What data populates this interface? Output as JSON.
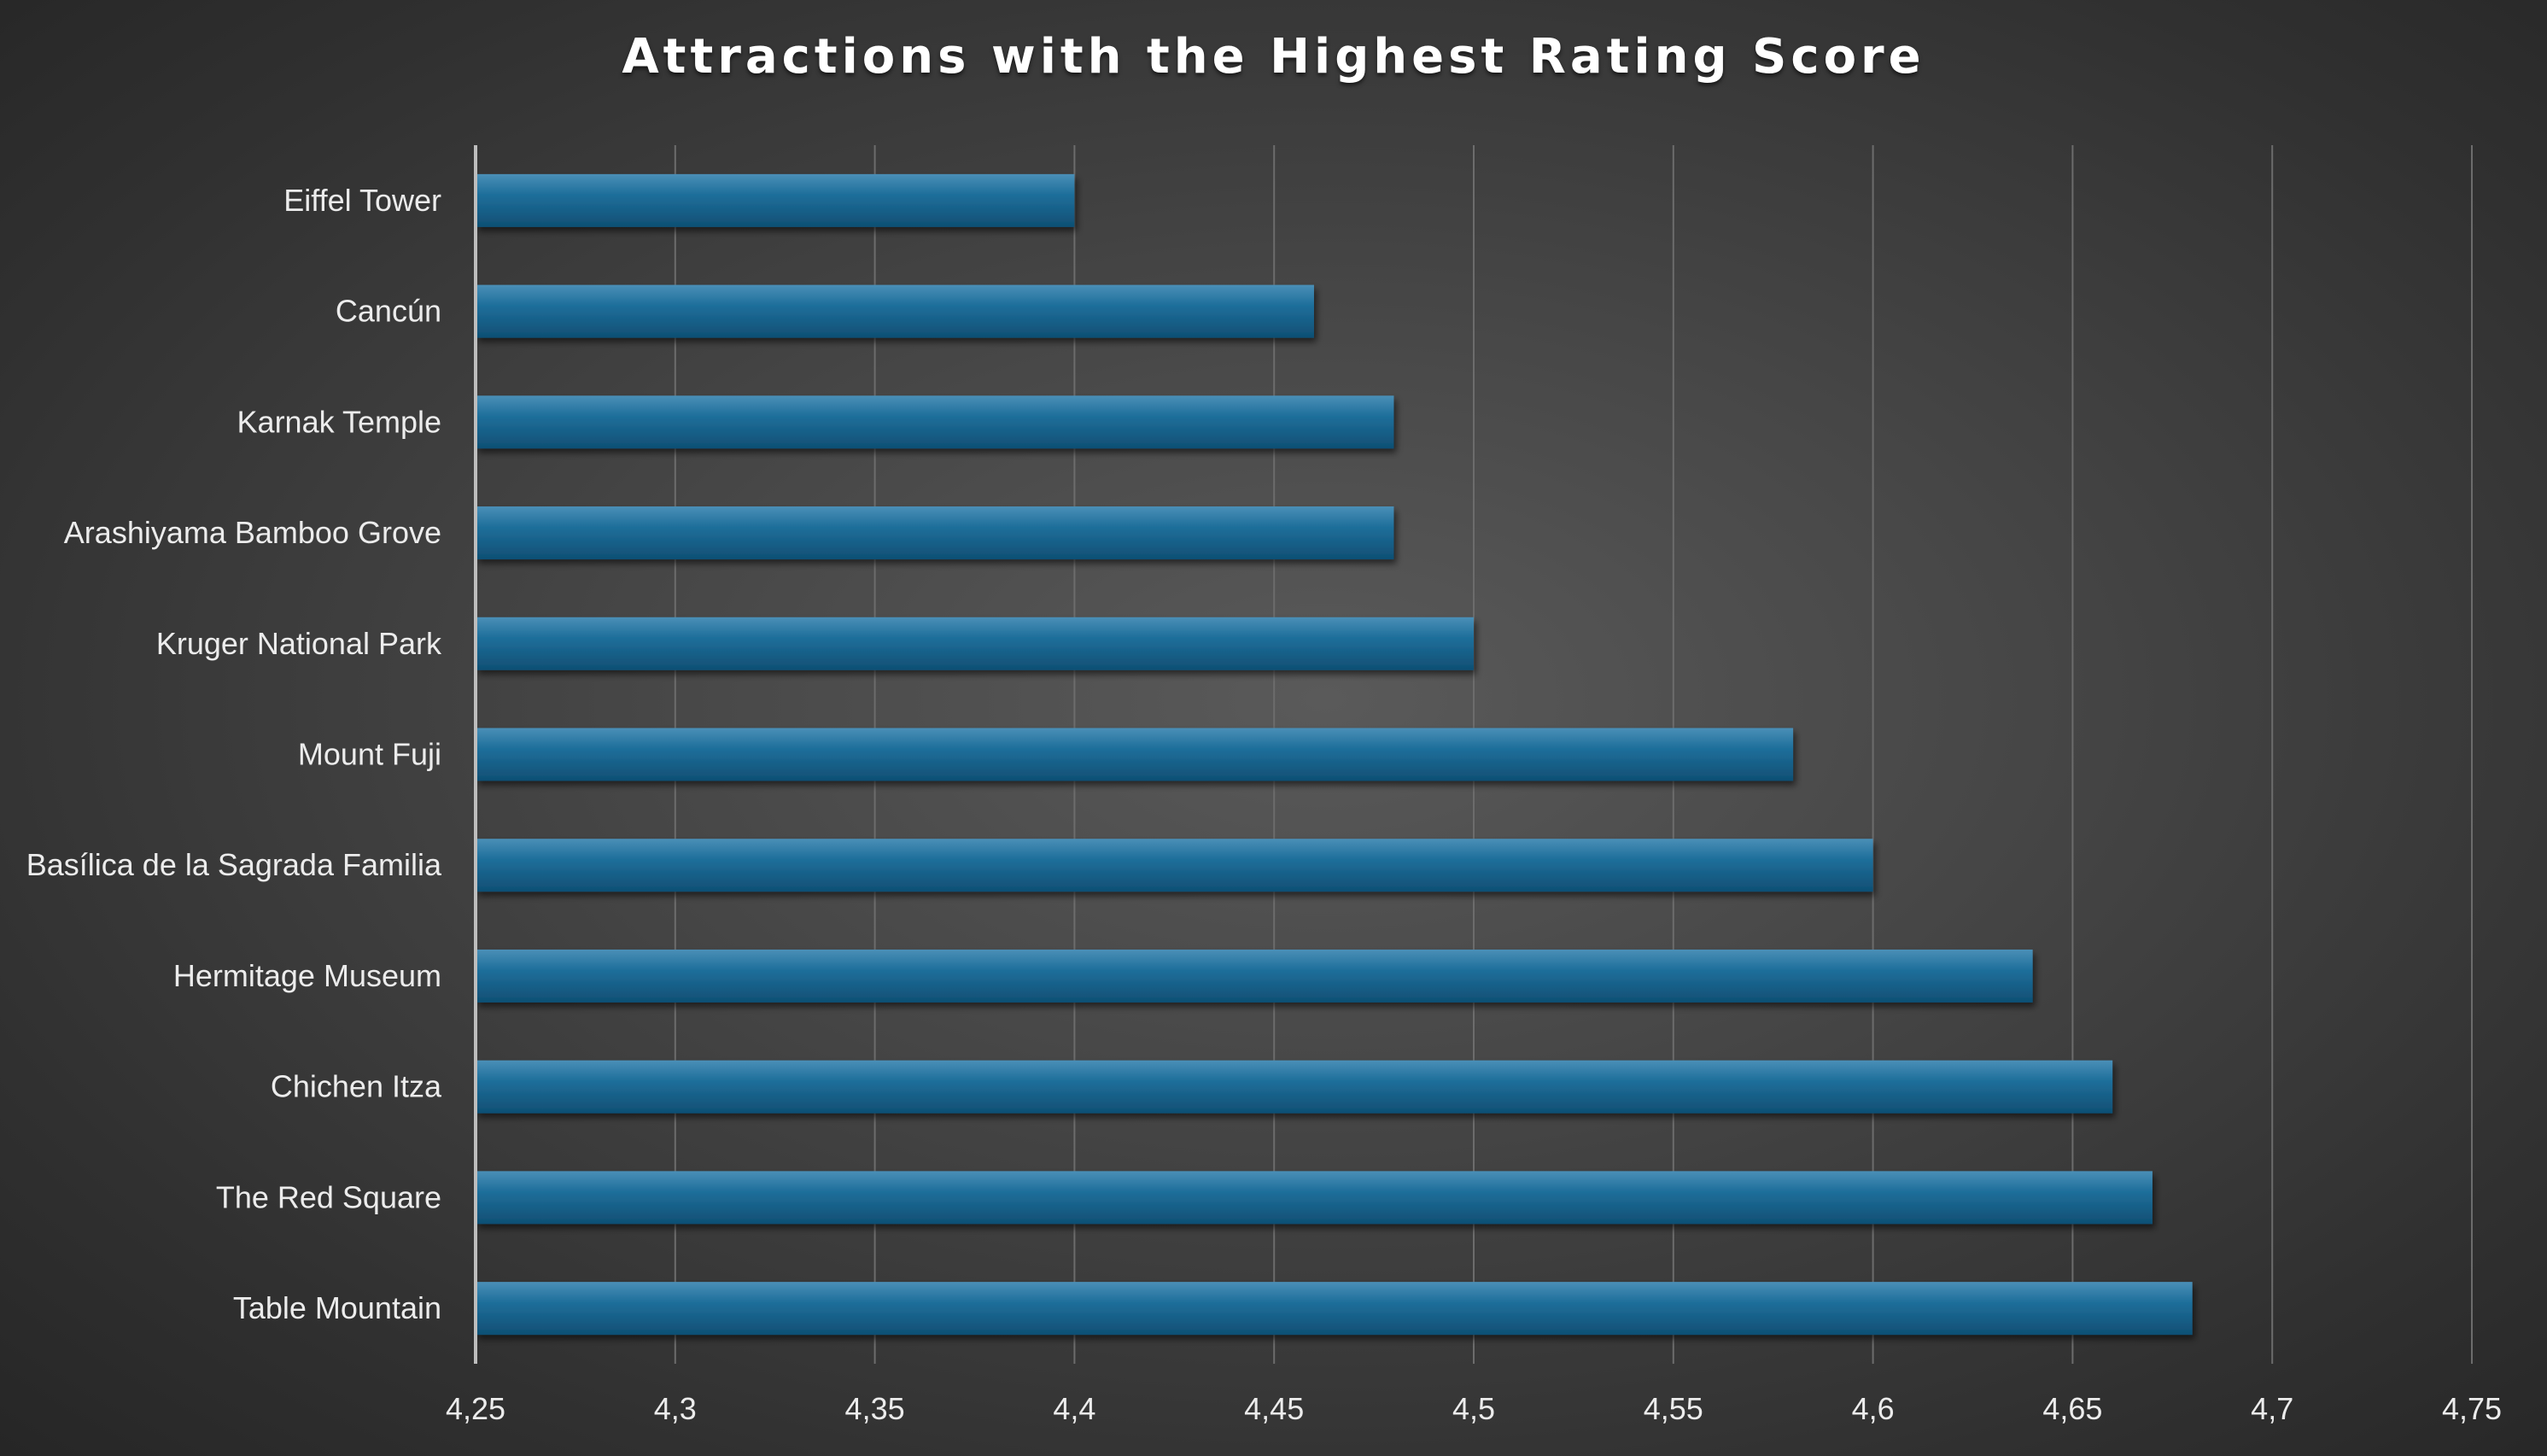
{
  "chart_data": {
    "type": "bar",
    "orientation": "horizontal",
    "title": "Attractions with the Highest Rating Score",
    "categories": [
      "Eiffel Tower",
      "Cancún",
      "Karnak Temple",
      "Arashiyama Bamboo Grove",
      "Kruger National Park",
      "Mount Fuji",
      "Basílica de la Sagrada Familia",
      "Hermitage Museum",
      "Chichen Itza",
      "The Red Square",
      "Table Mountain"
    ],
    "values": [
      4.4,
      4.46,
      4.48,
      4.48,
      4.5,
      4.58,
      4.6,
      4.64,
      4.66,
      4.67,
      4.68
    ],
    "xlim": [
      4.25,
      4.75
    ],
    "x_ticks": [
      4.25,
      4.3,
      4.35,
      4.4,
      4.45,
      4.5,
      4.55,
      4.6,
      4.65,
      4.7,
      4.75
    ],
    "x_tick_labels": [
      "4,25",
      "4,3",
      "4,35",
      "4,4",
      "4,45",
      "4,5",
      "4,55",
      "4,6",
      "4,65",
      "4,7",
      "4,75"
    ],
    "xlabel": "",
    "ylabel": "",
    "grid": "vertical",
    "legend": "none",
    "bar_color": "#1a6a96",
    "background_color": "#3c3c3c"
  }
}
